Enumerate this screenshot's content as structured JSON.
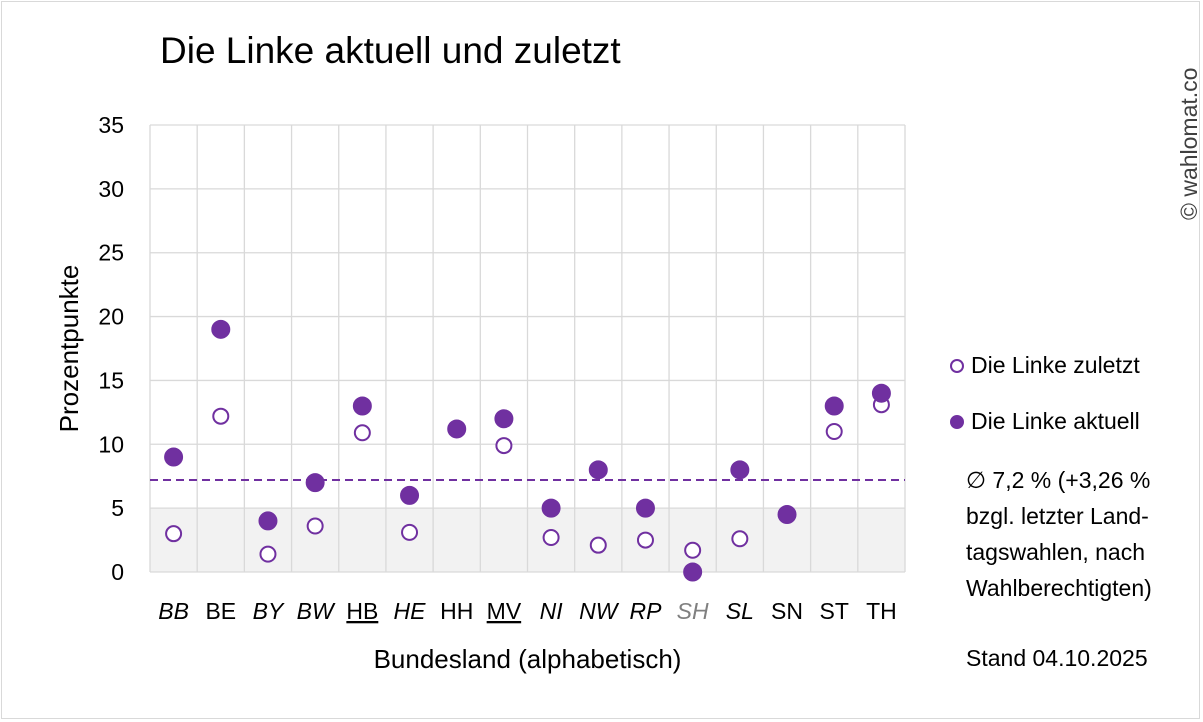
{
  "title": "Die Linke aktuell und zuletzt",
  "copyright": "© wahlomat.co",
  "legend": {
    "zuletzt": "Die Linke zuletzt",
    "aktuell": "Die Linke aktuell"
  },
  "note": {
    "line1": "∅ 7,2 % (+3,26 %",
    "line2": "bzgl. letzter Land-",
    "line3": "tagswahlen, nach",
    "line4": "Wahlberechtigten)"
  },
  "stand": "Stand 04.10.2025",
  "colors": {
    "accent": "#7030a0",
    "grid": "#d9d9d9",
    "band": "#f2f2f2",
    "grey_label": "#808080"
  },
  "chart_data": {
    "type": "scatter",
    "title": "Die Linke aktuell und zuletzt",
    "xlabel": "Bundesland (alphabetisch)",
    "ylabel": "Prozentpunkte",
    "ylim": [
      0,
      35
    ],
    "yticks": [
      0,
      5,
      10,
      15,
      20,
      25,
      30,
      35
    ],
    "grid": true,
    "legend_position": "right",
    "categories": [
      "BB",
      "BE",
      "BY",
      "BW",
      "HB",
      "HE",
      "HH",
      "MV",
      "NI",
      "NW",
      "RP",
      "SH",
      "SL",
      "SN",
      "ST",
      "TH"
    ],
    "category_styles": {
      "italic": [
        "BB",
        "BY",
        "BW",
        "HE",
        "NI",
        "NW",
        "RP",
        "SH",
        "SL"
      ],
      "underline": [
        "HB",
        "MV"
      ],
      "grey": [
        "SH"
      ]
    },
    "series": [
      {
        "name": "Die Linke zuletzt",
        "marker": "open-circle",
        "values": [
          3.0,
          12.2,
          1.4,
          3.6,
          10.9,
          3.1,
          null,
          9.9,
          2.7,
          2.1,
          2.5,
          1.7,
          2.6,
          null,
          11.0,
          13.1
        ]
      },
      {
        "name": "Die Linke aktuell",
        "marker": "filled-circle",
        "values": [
          9.0,
          19.0,
          4.0,
          7.0,
          13.0,
          6.0,
          11.2,
          12.0,
          5.0,
          8.0,
          5.0,
          0.0,
          8.0,
          4.5,
          13.0,
          14.0
        ]
      }
    ],
    "reference_line": {
      "value": 7.2,
      "style": "dashed"
    },
    "shaded_band": [
      0,
      5
    ]
  }
}
